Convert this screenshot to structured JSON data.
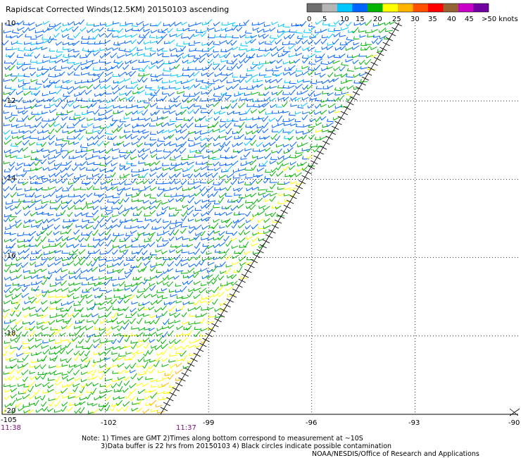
{
  "header": {
    "title": "Rapidscat Corrected Winds(12.5KM) 20150103 ascending"
  },
  "legend": {
    "labels": [
      "0",
      "5",
      "10",
      "15",
      "20",
      "25",
      "30",
      "35",
      "40",
      "45",
      ">50 knots"
    ],
    "colors": [
      "#6e6e6e",
      "#b5b5b5",
      "#00c8ff",
      "#0064ff",
      "#00b400",
      "#ffff00",
      "#ffb400",
      "#ff5000",
      "#ff0000",
      "#966432",
      "#c800c8",
      "#7000a0"
    ]
  },
  "axes": {
    "x_labels": [
      "-105",
      "-102",
      "-99",
      "-96",
      "-93",
      "-90"
    ],
    "y_labels": [
      "-10",
      "-12",
      "-14",
      "-16",
      "-18",
      "-20"
    ],
    "lon_range": [
      -105,
      -90
    ],
    "lat_range": [
      -20,
      -10
    ]
  },
  "times": {
    "left": "11:38",
    "mid": "11:37"
  },
  "notes": {
    "line1": "Note: 1) Times are GMT 2)Times along bottom correspond to measurement at ~10S",
    "line2": "3)Data buffer is 22 hrs from 20150103 4) Black circles indicate possible contamination",
    "line3": "NOAA/NESDIS/Office of Research and Applications"
  }
}
